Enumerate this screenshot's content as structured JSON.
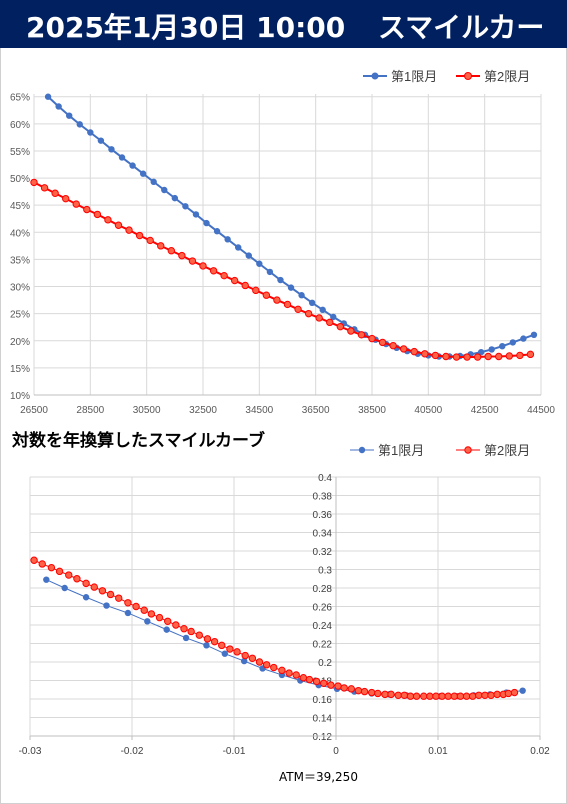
{
  "header": {
    "date": "2025年1月30日 10:00",
    "title": "スマイルカーブ"
  },
  "chart2_title": "対数を年換算したスマイルカーブ",
  "atm_label": "ATM＝39,250",
  "colors": {
    "header_bg": "#002060",
    "series1": "#4472C4",
    "series2": "#FF0000",
    "series2_fill": "#FF6347",
    "grid": "#D9D9D9",
    "axis": "#BFBFBF"
  },
  "chart_data": [
    {
      "type": "line",
      "series": [
        {
          "name": "第1限月",
          "color": "#4472C4",
          "x": [
            27000,
            27375,
            27750,
            28125,
            28500,
            28875,
            29250,
            29625,
            30000,
            30375,
            30750,
            31125,
            31500,
            31875,
            32250,
            32625,
            33000,
            33375,
            33750,
            34125,
            34500,
            34875,
            35250,
            35625,
            36000,
            36375,
            36750,
            37125,
            37500,
            37875,
            38250,
            38625,
            39000,
            39375,
            39750,
            40125,
            40500,
            40875,
            41250,
            41625,
            42000,
            42375,
            42750,
            43125,
            43500,
            43875,
            44250
          ],
          "y": [
            65.0,
            63.2,
            61.5,
            59.9,
            58.4,
            56.9,
            55.3,
            53.8,
            52.3,
            50.8,
            49.3,
            47.8,
            46.3,
            44.8,
            43.3,
            41.7,
            40.2,
            38.7,
            37.2,
            35.7,
            34.2,
            32.7,
            31.2,
            29.8,
            28.4,
            27.0,
            25.7,
            24.4,
            23.2,
            22.1,
            21.1,
            20.2,
            19.4,
            18.7,
            18.1,
            17.6,
            17.3,
            17.1,
            17.1,
            17.2,
            17.5,
            17.9,
            18.4,
            19.0,
            19.7,
            20.4,
            21.1
          ]
        },
        {
          "name": "第2限月",
          "color": "#FF0000",
          "x": [
            26500,
            26875,
            27250,
            27625,
            28000,
            28375,
            28750,
            29125,
            29500,
            29875,
            30250,
            30625,
            31000,
            31375,
            31750,
            32125,
            32500,
            32875,
            33250,
            33625,
            34000,
            34375,
            34750,
            35125,
            35500,
            35875,
            36250,
            36625,
            37000,
            37375,
            37750,
            38125,
            38500,
            38875,
            39250,
            39625,
            40000,
            40375,
            40750,
            41125,
            41500,
            41875,
            42250,
            42625,
            43000,
            43375,
            43750,
            44125
          ],
          "y": [
            49.2,
            48.2,
            47.2,
            46.2,
            45.2,
            44.2,
            43.3,
            42.3,
            41.3,
            40.4,
            39.4,
            38.5,
            37.5,
            36.6,
            35.7,
            34.7,
            33.8,
            32.9,
            32.0,
            31.1,
            30.2,
            29.3,
            28.4,
            27.5,
            26.7,
            25.8,
            25.0,
            24.2,
            23.4,
            22.6,
            21.8,
            21.1,
            20.4,
            19.7,
            19.1,
            18.5,
            18.0,
            17.6,
            17.3,
            17.1,
            17.0,
            17.0,
            17.0,
            17.1,
            17.1,
            17.2,
            17.3,
            17.5
          ]
        }
      ],
      "xticks": [
        "26500",
        "28500",
        "30500",
        "32500",
        "34500",
        "36500",
        "38500",
        "40500",
        "42500",
        "44500"
      ],
      "yticks": [
        "10%",
        "15%",
        "20%",
        "25%",
        "30%",
        "35%",
        "40%",
        "45%",
        "50%",
        "55%",
        "60%",
        "65%"
      ],
      "xlim": [
        26500,
        44500
      ],
      "ylim": [
        10,
        65.5
      ],
      "grid": true,
      "legend": "top-right"
    },
    {
      "type": "line",
      "series": [
        {
          "name": "第1限月",
          "color": "#4472C4",
          "x": [
            -0.0284,
            -0.0266,
            -0.0245,
            -0.0225,
            -0.0204,
            -0.0185,
            -0.0166,
            -0.0147,
            -0.0127,
            -0.0109,
            -0.009,
            -0.0072,
            -0.0053,
            -0.0035,
            -0.0017,
            0.0001,
            0.0018,
            0.0035,
            0.0052,
            0.0069,
            0.0086,
            0.0102,
            0.0119,
            0.0135,
            0.0151,
            0.0167,
            0.0183
          ],
          "y": [
            0.289,
            0.28,
            0.27,
            0.261,
            0.253,
            0.244,
            0.235,
            0.226,
            0.218,
            0.209,
            0.201,
            0.193,
            0.186,
            0.18,
            0.175,
            0.171,
            0.168,
            0.166,
            0.165,
            0.164,
            0.163,
            0.163,
            0.163,
            0.164,
            0.165,
            0.167,
            0.169
          ]
        },
        {
          "name": "第2限月",
          "color": "#FF0000",
          "x": [
            -0.0296,
            -0.0288,
            -0.0279,
            -0.0271,
            -0.0262,
            -0.0254,
            -0.0245,
            -0.0237,
            -0.0229,
            -0.0221,
            -0.0213,
            -0.0204,
            -0.0196,
            -0.0188,
            -0.0181,
            -0.0173,
            -0.0165,
            -0.0157,
            -0.0149,
            -0.0142,
            -0.0134,
            -0.0126,
            -0.0119,
            -0.0112,
            -0.0104,
            -0.0097,
            -0.0089,
            -0.0082,
            -0.0075,
            -0.0068,
            -0.0061,
            -0.0053,
            -0.0046,
            -0.0039,
            -0.0032,
            -0.0026,
            -0.0019,
            -0.0012,
            -0.0005,
            0.0002,
            0.0008,
            0.0015,
            0.0022,
            0.0028,
            0.0035,
            0.0041,
            0.0048,
            0.0054,
            0.0061,
            0.0067,
            0.0073,
            0.0079,
            0.0086,
            0.0092,
            0.0098,
            0.0104,
            0.011,
            0.0116,
            0.0122,
            0.0128,
            0.0134,
            0.014,
            0.0146,
            0.0152,
            0.0158,
            0.0164,
            0.0169,
            0.0175
          ],
          "y": [
            0.31,
            0.306,
            0.302,
            0.298,
            0.294,
            0.29,
            0.285,
            0.281,
            0.277,
            0.273,
            0.269,
            0.264,
            0.26,
            0.256,
            0.252,
            0.248,
            0.244,
            0.24,
            0.236,
            0.233,
            0.229,
            0.225,
            0.222,
            0.218,
            0.214,
            0.211,
            0.207,
            0.204,
            0.2,
            0.197,
            0.194,
            0.191,
            0.188,
            0.186,
            0.183,
            0.181,
            0.179,
            0.177,
            0.175,
            0.174,
            0.172,
            0.171,
            0.169,
            0.168,
            0.167,
            0.166,
            0.165,
            0.165,
            0.164,
            0.164,
            0.163,
            0.163,
            0.163,
            0.163,
            0.163,
            0.163,
            0.163,
            0.163,
            0.163,
            0.163,
            0.163,
            0.164,
            0.164,
            0.164,
            0.165,
            0.165,
            0.166,
            0.167
          ]
        }
      ],
      "xticks": [
        "-0.03",
        "-0.02",
        "-0.01",
        "0",
        "0.01",
        "0.02"
      ],
      "yticks": [
        "0.12",
        "0.14",
        "0.16",
        "0.18",
        "0.2",
        "0.22",
        "0.24",
        "0.26",
        "0.28",
        "0.3",
        "0.32",
        "0.34",
        "0.36",
        "0.38",
        "0.4"
      ],
      "xlim": [
        -0.03,
        0.02
      ],
      "ylim": [
        0.12,
        0.4
      ],
      "grid": true,
      "legend": "top-right"
    }
  ]
}
